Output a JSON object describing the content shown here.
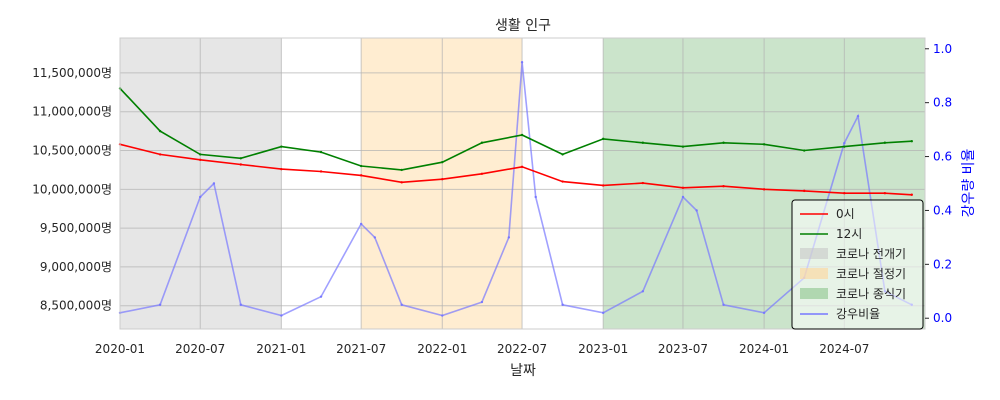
{
  "chart_data": {
    "type": "line",
    "title": "생활 인구",
    "xlabel": "날짜",
    "ylabel": "",
    "y2label": "강우량 비율",
    "xlim": [
      "2020-01-01",
      "2024-12-31"
    ],
    "ylim": [
      8200000,
      11950000
    ],
    "y2lim": [
      -0.04,
      1.04
    ],
    "x_ticks": [
      "2020-01",
      "2020-07",
      "2021-01",
      "2021-07",
      "2022-01",
      "2022-07",
      "2023-01",
      "2023-07",
      "2024-01",
      "2024-07"
    ],
    "y_ticks": [
      {
        "value": 8500000,
        "label": "8,500,000명"
      },
      {
        "value": 9000000,
        "label": "9,000,000명"
      },
      {
        "value": 9500000,
        "label": "9,500,000명"
      },
      {
        "value": 10000000,
        "label": "10,000,000명"
      },
      {
        "value": 10500000,
        "label": "10,500,000명"
      },
      {
        "value": 11000000,
        "label": "11,000,000명"
      },
      {
        "value": 11500000,
        "label": "11,500,000명"
      }
    ],
    "y2_ticks": [
      "0.0",
      "0.2",
      "0.4",
      "0.6",
      "0.8",
      "1.0"
    ],
    "grid": true,
    "legend_position": "lower-right",
    "periods": [
      {
        "name": "코로나 전개기",
        "start": "2020-01-01",
        "end": "2021-01-01",
        "color": "#c8c8c8"
      },
      {
        "name": "코로나 절정기",
        "start": "2021-07-01",
        "end": "2022-07-01",
        "color": "#ffd699"
      },
      {
        "name": "코로나 종식기",
        "start": "2023-01-01",
        "end": "2024-12-31",
        "color": "#8cc48c"
      }
    ],
    "series": [
      {
        "name": "0시",
        "color": "#ff0000",
        "axis": "left",
        "x": [
          "2020-01",
          "2020-04",
          "2020-07",
          "2020-10",
          "2021-01",
          "2021-04",
          "2021-07",
          "2021-10",
          "2022-01",
          "2022-04",
          "2022-07",
          "2022-10",
          "2023-01",
          "2023-04",
          "2023-07",
          "2023-10",
          "2024-01",
          "2024-04",
          "2024-07",
          "2024-10",
          "2024-12"
        ],
        "values": [
          10580000,
          10450000,
          10380000,
          10320000,
          10260000,
          10230000,
          10180000,
          10090000,
          10130000,
          10200000,
          10290000,
          10100000,
          10050000,
          10080000,
          10020000,
          10040000,
          10000000,
          9980000,
          9950000,
          9950000,
          9930000
        ]
      },
      {
        "name": "12시",
        "color": "#008000",
        "axis": "left",
        "x": [
          "2020-01",
          "2020-04",
          "2020-07",
          "2020-10",
          "2021-01",
          "2021-04",
          "2021-07",
          "2021-10",
          "2022-01",
          "2022-04",
          "2022-07",
          "2022-10",
          "2023-01",
          "2023-04",
          "2023-07",
          "2023-10",
          "2024-01",
          "2024-04",
          "2024-07",
          "2024-10",
          "2024-12"
        ],
        "values": [
          11300000,
          10750000,
          10450000,
          10400000,
          10550000,
          10480000,
          10300000,
          10250000,
          10350000,
          10600000,
          10700000,
          10450000,
          10650000,
          10600000,
          10550000,
          10600000,
          10580000,
          10500000,
          10550000,
          10600000,
          10620000
        ]
      },
      {
        "name": "강우비율",
        "color": "#7777ff",
        "axis": "right",
        "x": [
          "2020-01",
          "2020-04",
          "2020-07",
          "2020-08",
          "2020-10",
          "2021-01",
          "2021-04",
          "2021-07",
          "2021-08",
          "2021-10",
          "2022-01",
          "2022-04",
          "2022-06",
          "2022-07",
          "2022-08",
          "2022-10",
          "2023-01",
          "2023-04",
          "2023-07",
          "2023-08",
          "2023-10",
          "2024-01",
          "2024-04",
          "2024-07",
          "2024-08",
          "2024-10",
          "2024-12"
        ],
        "values": [
          0.02,
          0.05,
          0.45,
          0.5,
          0.05,
          0.01,
          0.08,
          0.35,
          0.3,
          0.05,
          0.01,
          0.06,
          0.3,
          0.95,
          0.45,
          0.05,
          0.02,
          0.1,
          0.45,
          0.4,
          0.05,
          0.02,
          0.15,
          0.65,
          0.75,
          0.1,
          0.05
        ]
      }
    ]
  }
}
